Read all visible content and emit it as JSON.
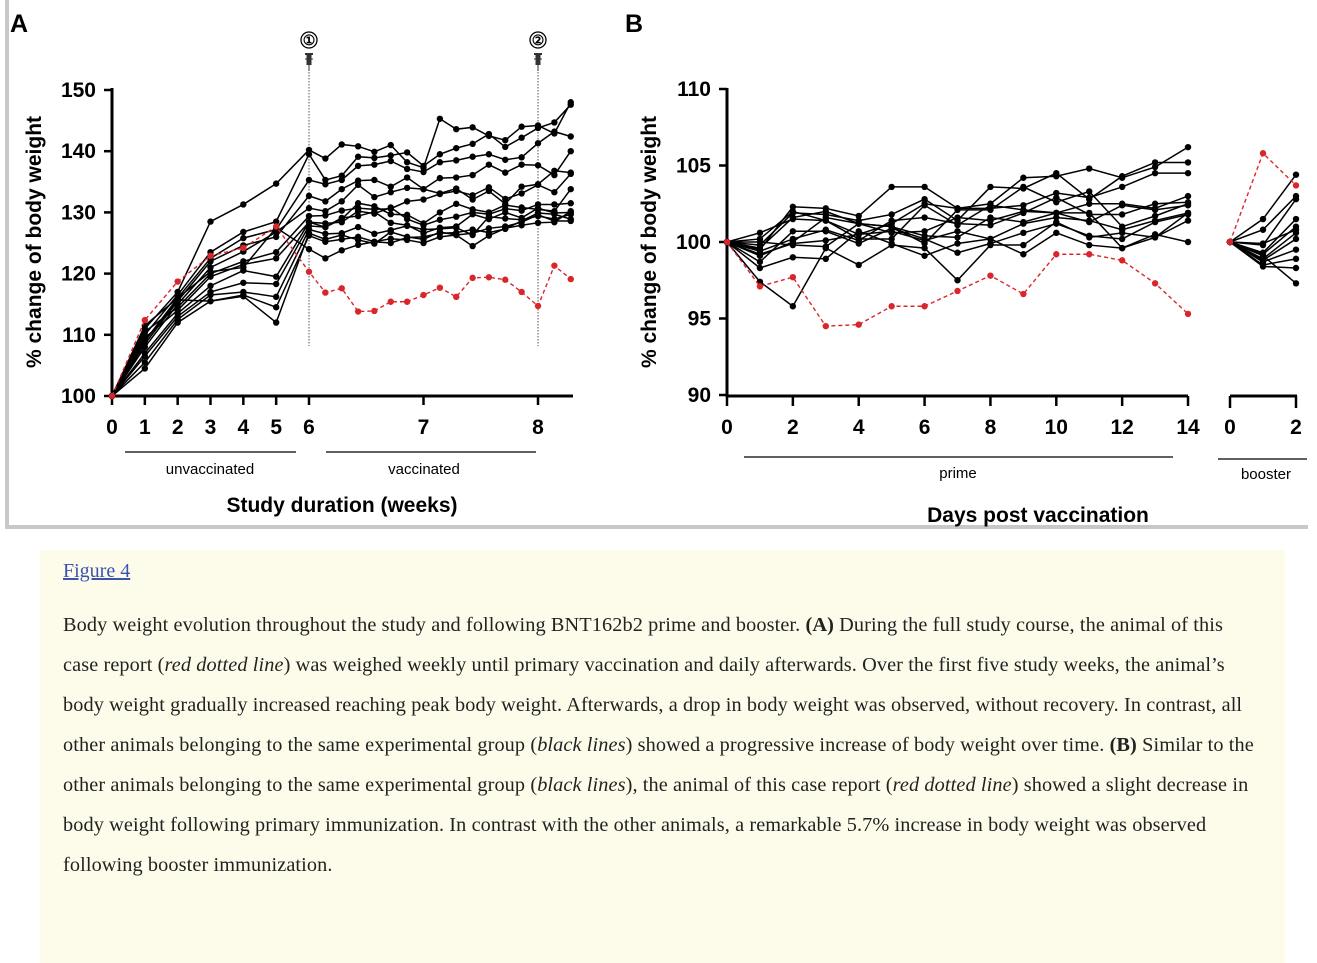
{
  "figure_link": "Figure 4",
  "caption": {
    "segments": [
      {
        "text": "Body weight evolution throughout the study and following BNT162b2 prime and booster. ",
        "style": ""
      },
      {
        "text": "(A)",
        "style": "b"
      },
      {
        "text": " During the full study course, the animal of this case report (",
        "style": ""
      },
      {
        "text": "red dotted line",
        "style": "i"
      },
      {
        "text": ") was weighed weekly until primary vaccination and daily afterwards. Over the first five study weeks, the animal’s body weight gradually increased reaching peak body weight. Afterwards, a drop in body weight was observed, without recovery. In contrast, all other animals belonging to the same experimental group (",
        "style": ""
      },
      {
        "text": "black lines",
        "style": "i"
      },
      {
        "text": ") showed a progressive increase of body weight over time. ",
        "style": ""
      },
      {
        "text": "(B)",
        "style": "b"
      },
      {
        "text": " Similar to the other animals belonging to the same experimental group (",
        "style": ""
      },
      {
        "text": "black lines",
        "style": "i"
      },
      {
        "text": "), the animal of this case report (",
        "style": ""
      },
      {
        "text": "red dotted line",
        "style": "i"
      },
      {
        "text": ") showed a slight decrease in body weight following primary immunization. In contrast with the other animals, a remarkable 5.7% increase in body weight was observed following booster immunization.",
        "style": ""
      }
    ]
  },
  "colors": {
    "case_animal": "#d9262b",
    "other_animals": "#000000",
    "caption_bg": "#fdfbe9",
    "link": "#3a53b0"
  },
  "chart_data": [
    {
      "panel": "A",
      "type": "line",
      "xlabel": "Study duration (weeks)",
      "ylabel": "% change of body weight",
      "ylim": [
        100,
        150
      ],
      "yticks": [
        "100",
        "110",
        "120",
        "130",
        "140",
        "150"
      ],
      "xticks": [
        "0",
        "1",
        "2",
        "3",
        "4",
        "5",
        "6",
        "7",
        "8"
      ],
      "groups": [
        "unvaccinated",
        "vaccinated"
      ],
      "annotations": [
        {
          "label": "①",
          "week": 6,
          "icon": "syringe-icon"
        },
        {
          "label": "②",
          "week": 8,
          "icon": "syringe-icon"
        }
      ],
      "x": [
        0,
        1,
        2,
        3,
        4,
        5,
        6,
        6.143,
        6.286,
        6.429,
        6.571,
        6.714,
        6.857,
        7,
        7.143,
        7.286,
        7.429,
        7.571,
        7.714,
        7.857,
        8,
        8.143,
        8.286
      ],
      "case_series": {
        "name": "case animal (red dotted line)",
        "values": [
          100,
          112.4,
          118.7,
          122.9,
          124.2,
          127.7,
          120.3,
          116.9,
          117.6,
          113.8,
          113.9,
          115.4,
          115.4,
          116.5,
          117.7,
          116.2,
          119.3,
          119.4,
          119,
          117,
          114.7,
          121.3,
          119.1
        ]
      },
      "series": [
        [
          100,
          111,
          117,
          128.5,
          131.3,
          134.7,
          140.2,
          138.8,
          141.1,
          140.8,
          139.9,
          141,
          138.2,
          137.3,
          145.3,
          143.6,
          143.9,
          142.5,
          141.8,
          144,
          144.2,
          142.9,
          148
        ],
        [
          100,
          110,
          116.5,
          123.5,
          126.8,
          128.5,
          139.5,
          135.3,
          136,
          139.1,
          138.9,
          139.3,
          139.8,
          137.6,
          139.5,
          140.5,
          141.2,
          142.8,
          140.7,
          142.2,
          143.8,
          144.7,
          147.6
        ],
        [
          100,
          109,
          116,
          122.5,
          125.8,
          127.2,
          135.3,
          134.6,
          135.3,
          137.6,
          137.8,
          138.4,
          137.1,
          136.6,
          138.2,
          138.5,
          139.1,
          139.5,
          138.6,
          139,
          141.3,
          143.2,
          142.4
        ],
        [
          100,
          108.5,
          115.5,
          122,
          124.6,
          126,
          132.7,
          131.8,
          133.8,
          135.2,
          135.3,
          134.2,
          135.7,
          133.8,
          135.6,
          135.7,
          136.1,
          137.8,
          136.5,
          137.8,
          137.7,
          136.1,
          140
        ],
        [
          100,
          108,
          115,
          121,
          123.6,
          126.8,
          130.7,
          130.2,
          131.8,
          134.5,
          132.5,
          133.3,
          134,
          133.8,
          133.1,
          133.9,
          132.1,
          133.5,
          131.4,
          134.2,
          134.6,
          136.8,
          136.5
        ],
        [
          100,
          110.5,
          114.5,
          120,
          122,
          123.5,
          129.4,
          129.5,
          130.3,
          130.7,
          130.5,
          130.6,
          131.8,
          132.1,
          133,
          133.5,
          132.8,
          134.1,
          132.2,
          133.1,
          134.5,
          133.3,
          136.3
        ],
        [
          100,
          109.5,
          114,
          119.5,
          121.5,
          122.5,
          128.4,
          127.6,
          128.9,
          131.5,
          131,
          129.7,
          129.6,
          128.2,
          130,
          131.4,
          130.5,
          130,
          131.2,
          130.8,
          130.5,
          130.2,
          133.8
        ],
        [
          100,
          107,
          113.5,
          118,
          120.5,
          119.5,
          128.4,
          128.2,
          128.4,
          130.2,
          129.8,
          130.8,
          128.9,
          127.9,
          128.8,
          129.3,
          130,
          129.7,
          130.6,
          130.3,
          131.3,
          131.3,
          131.5
        ],
        [
          100,
          106.5,
          113,
          117,
          118.5,
          118.3,
          127.8,
          127.6,
          129.1,
          129.4,
          130.1,
          128.3,
          127.9,
          126.6,
          127.5,
          127.7,
          129.7,
          128.9,
          130,
          129.1,
          130.7,
          129.9,
          130
        ],
        [
          100,
          105.5,
          112.5,
          116.5,
          117,
          116.2,
          127.2,
          126.5,
          126.6,
          127.6,
          126.5,
          127.1,
          127.8,
          127.2,
          127.3,
          127.5,
          126.3,
          129.3,
          129,
          128.8,
          129.4,
          128.9,
          129.7
        ],
        [
          100,
          104.5,
          112,
          115.5,
          116.3,
          112,
          126.6,
          125.6,
          126.3,
          125.5,
          124.9,
          126.8,
          126,
          125.6,
          126.8,
          126.3,
          126.6,
          127.4,
          127.7,
          128.4,
          129.6,
          128.6,
          128.6
        ],
        [
          100,
          109,
          115.7,
          115.5,
          116.5,
          114.5,
          126.2,
          125.2,
          125.6,
          126,
          125.2,
          125.7,
          125.5,
          125,
          126,
          126.3,
          124.5,
          126.2,
          127.4,
          127.9,
          128.3,
          128.4,
          130.2
        ],
        [
          100,
          111.5,
          116,
          120.3,
          121,
          127.5,
          124,
          122.5,
          123.8,
          124.7,
          125.2,
          125,
          125.9,
          126,
          126.6,
          126.7,
          127.2,
          126.7,
          127.3,
          128.6,
          129.9,
          129.7,
          128.9
        ]
      ]
    },
    {
      "panel": "B",
      "type": "line",
      "xlabel": "Days post vaccination",
      "ylabel": "% change of body weight",
      "ylim": [
        90,
        110
      ],
      "yticks": [
        "90",
        "95",
        "100",
        "105",
        "110"
      ],
      "xticks_prime": [
        "0",
        "2",
        "4",
        "6",
        "8",
        "10",
        "12",
        "14"
      ],
      "xticks_booster": [
        "0",
        "2"
      ],
      "groups": [
        "prime",
        "booster"
      ],
      "x_prime": [
        0,
        1,
        2,
        3,
        4,
        5,
        6,
        7,
        8,
        9,
        10,
        11,
        12,
        13,
        14
      ],
      "x_booster": [
        0,
        1,
        2
      ],
      "case_series": {
        "name": "case animal (red dotted line)",
        "prime": [
          100,
          97.1,
          97.7,
          94.5,
          94.6,
          95.8,
          95.8,
          96.8,
          97.8,
          96.6,
          99.2,
          99.2,
          98.8,
          97.3,
          95.3
        ],
        "booster": [
          100,
          105.8,
          103.7
        ]
      },
      "series": [
        {
          "prime": [
            100,
            99.5,
            102.3,
            102.2,
            101.7,
            103.6,
            103.6,
            102.2,
            102.5,
            104.2,
            104.3,
            104.8,
            104.2,
            104.9,
            106.2
          ],
          "booster": [
            100,
            101.5,
            104.4
          ]
        },
        {
          "prime": [
            100,
            99.8,
            101.9,
            101.8,
            101.4,
            101.8,
            102.8,
            101.4,
            103.6,
            103.5,
            104.5,
            102.8,
            104.3,
            105.2,
            105.2
          ],
          "booster": [
            100,
            100.8,
            103
          ]
        },
        {
          "prime": [
            100,
            100.6,
            101.5,
            101.4,
            100.5,
            101.2,
            102.5,
            102.2,
            102.2,
            102.4,
            103.2,
            102.9,
            103.6,
            104.5,
            104.5
          ],
          "booster": [
            100,
            99.8,
            102.8
          ]
        },
        {
          "prime": [
            100,
            99.6,
            101.6,
            102,
            101.2,
            100.6,
            100.7,
            101.6,
            101.4,
            102,
            101.9,
            102.5,
            102.5,
            102.2,
            103
          ],
          "booster": [
            100,
            99.3,
            101.5
          ]
        },
        {
          "prime": [
            100,
            99.4,
            100.2,
            100.8,
            100.1,
            101.4,
            101.6,
            101.2,
            101.1,
            101.9,
            102.9,
            101.8,
            101.8,
            102.5,
            102.6
          ],
          "booster": [
            100,
            99.2,
            101
          ]
        },
        {
          "prime": [
            100,
            99.1,
            100,
            101.6,
            101.2,
            101,
            100.4,
            100.3,
            101.6,
            101.3,
            101.9,
            101.3,
            102.4,
            102.1,
            102.4
          ],
          "booster": [
            100,
            98.9,
            100.6
          ]
        },
        {
          "prime": [
            100,
            99.2,
            99.9,
            100.1,
            100.5,
            100.7,
            100.1,
            100.7,
            100.2,
            101.2,
            101.6,
            101.4,
            100.8,
            101.4,
            101.9
          ],
          "booster": [
            100,
            98.8,
            100.2
          ]
        },
        {
          "prime": [
            100,
            98.7,
            100.7,
            100.7,
            99.9,
            100.9,
            100.2,
            99.3,
            99.9,
            100.6,
            101.2,
            100.4,
            100.2,
            101.3,
            101.8
          ],
          "booster": [
            100,
            98.7,
            99.5
          ]
        },
        {
          "prime": [
            100,
            98.3,
            99,
            98.9,
            100.7,
            99.9,
            99.1,
            99.9,
            100.2,
            99.2,
            100.6,
            99.8,
            99.6,
            100.5,
            100
          ],
          "booster": [
            100,
            98.5,
            98.9
          ]
        },
        {
          "prime": [
            100,
            97.4,
            95.8,
            99.6,
            98.5,
            99.8,
            99.6,
            97.5,
            99.8,
            99.8,
            101.3,
            100.3,
            100.6,
            100.3,
            101.4
          ],
          "booster": [
            100,
            98.4,
            98.3
          ]
        },
        {
          "prime": [
            100,
            100,
            99.8,
            99.7,
            101.2,
            101,
            99.9,
            102.1,
            102.1,
            103.6,
            102.6,
            103.3,
            101,
            101.7,
            102.5
          ],
          "booster": [
            100,
            99.9,
            100.8
          ]
        },
        {
          "prime": [
            100,
            100.2,
            102,
            101.4,
            100.2,
            100.2,
            102.4,
            101.1,
            102.4,
            102.1,
            101.9,
            101.9,
            99.6,
            100.3,
            101.9
          ],
          "booster": [
            100,
            99.1,
            97.3
          ]
        }
      ]
    }
  ]
}
